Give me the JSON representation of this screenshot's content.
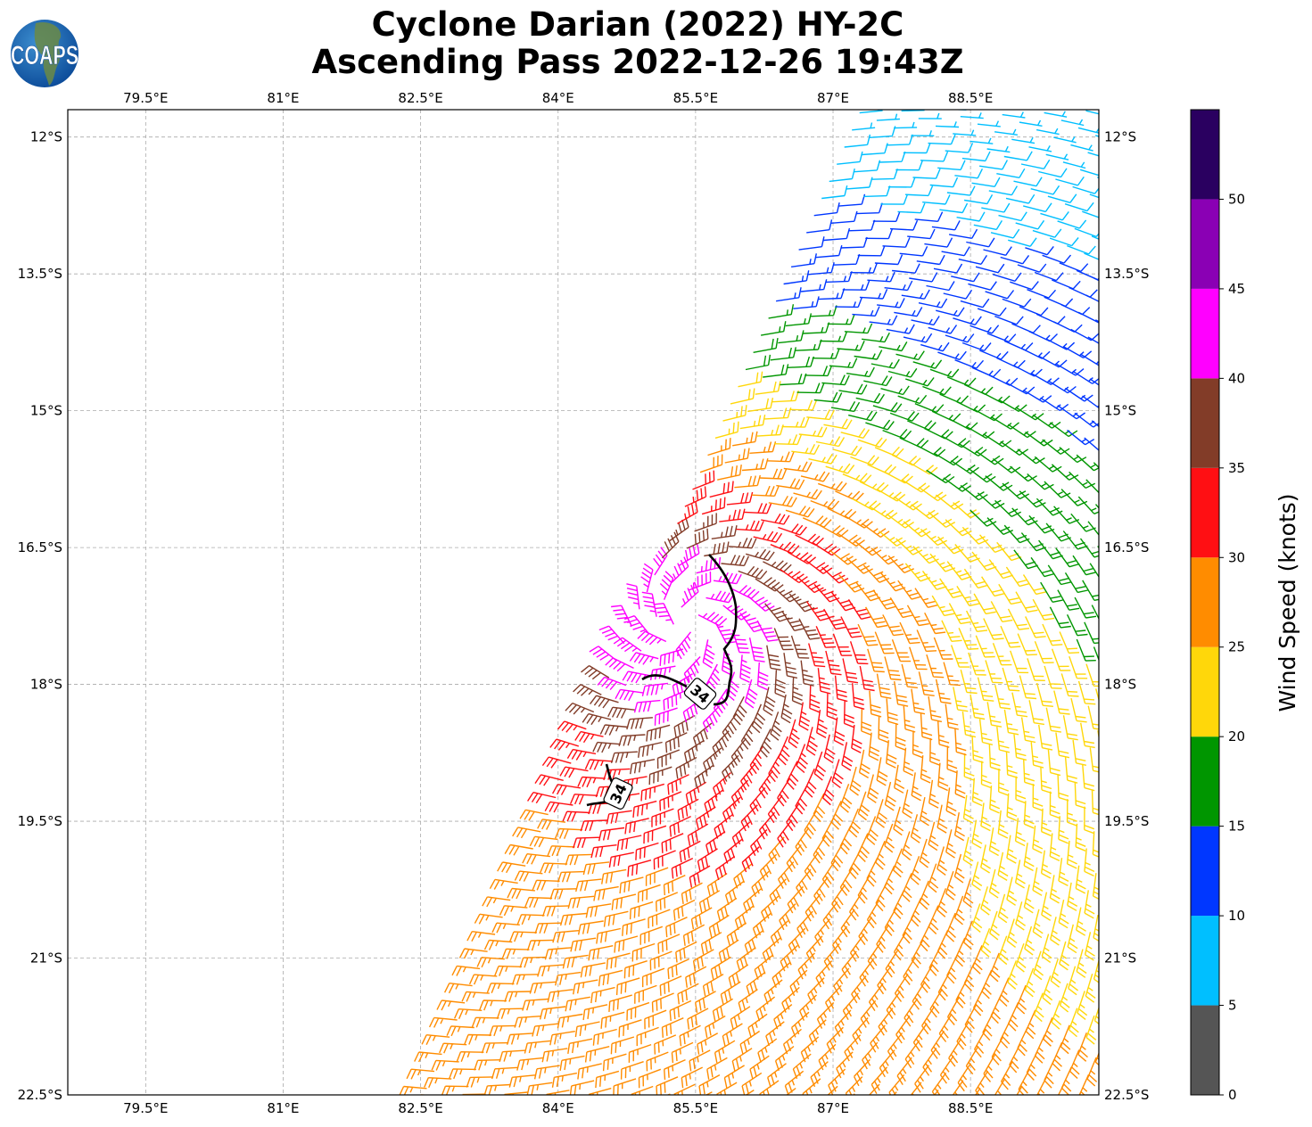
{
  "title": {
    "line1": "Cyclone Darian (2022) HY-2C",
    "line2": "Ascending Pass 2022-12-26 19:43Z"
  },
  "logo": {
    "text": "COAPS"
  },
  "chart_data": {
    "type": "wind-barb-map",
    "lon_ticks": [
      "79.5°E",
      "81°E",
      "82.5°E",
      "84°E",
      "85.5°E",
      "87°E",
      "88.5°E"
    ],
    "lon_values": [
      79.5,
      81,
      82.5,
      84,
      85.5,
      87,
      88.5
    ],
    "lat_ticks": [
      "12°S",
      "13.5°S",
      "15°S",
      "16.5°S",
      "18°S",
      "19.5°S",
      "21°S",
      "22.5°S"
    ],
    "lat_values": [
      -12,
      -13.5,
      -15,
      -16.5,
      -18,
      -19.5,
      -21,
      -22.5
    ],
    "lon_range": [
      78.65,
      89.9
    ],
    "lat_range": [
      -11.7,
      -22.5
    ],
    "grid": true,
    "contour": {
      "level": 34,
      "labels": [
        "34",
        "34"
      ]
    },
    "colorbar": {
      "label": "Wind Speed (knots)",
      "ticks": [
        "0",
        "5",
        "10",
        "15",
        "20",
        "25",
        "30",
        "35",
        "40",
        "45",
        "50"
      ],
      "range": [
        0,
        55
      ],
      "bins": [
        {
          "from": 0,
          "to": 5,
          "color": "#555555"
        },
        {
          "from": 5,
          "to": 10,
          "color": "#00bfff"
        },
        {
          "from": 10,
          "to": 15,
          "color": "#0037ff"
        },
        {
          "from": 15,
          "to": 20,
          "color": "#009600"
        },
        {
          "from": 20,
          "to": 25,
          "color": "#ffd70a"
        },
        {
          "from": 25,
          "to": 30,
          "color": "#ff8c00"
        },
        {
          "from": 30,
          "to": 35,
          "color": "#ff0f13"
        },
        {
          "from": 35,
          "to": 40,
          "color": "#823c28"
        },
        {
          "from": 40,
          "to": 45,
          "color": "#ff00ff"
        },
        {
          "from": 45,
          "to": 50,
          "color": "#8a00b4"
        },
        {
          "from": 50,
          "to": 55,
          "color": "#2a0060"
        }
      ]
    }
  }
}
